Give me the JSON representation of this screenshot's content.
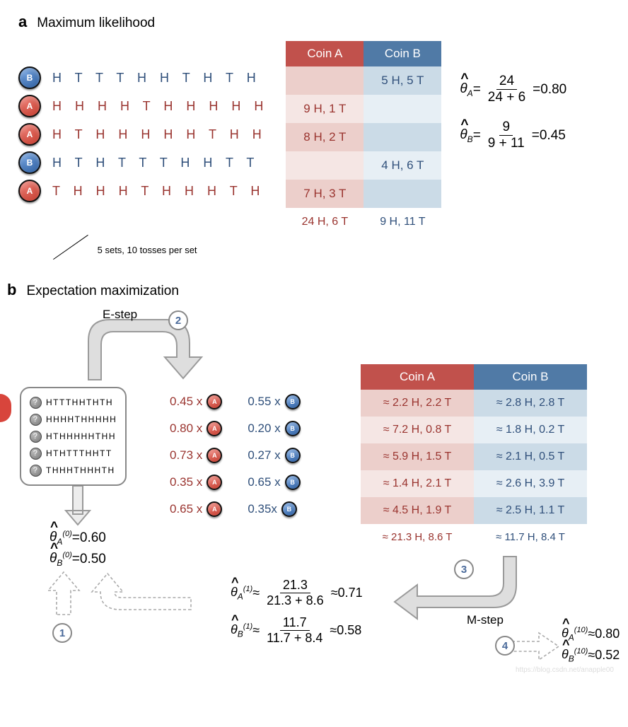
{
  "colors": {
    "coinA_header": "#c1514c",
    "coinB_header": "#507aa6",
    "coinA_cell_dark": "#eccfcb",
    "coinA_cell_light": "#f5e6e4",
    "coinB_cell_dark": "#cbdbe7",
    "coinB_cell_light": "#e7eff5",
    "textA": "#9a342f",
    "textB": "#2f4f7a",
    "coinA_face": "#c0392b",
    "coinB_face": "#2a5a9a",
    "arrow_fill": "#dedede",
    "arrow_stroke": "#9a9a9a"
  },
  "panel_a": {
    "label": "a",
    "title": "Maximum likelihood",
    "tosses": [
      {
        "coin": "B",
        "seq": "H T T T H H T H T H"
      },
      {
        "coin": "A",
        "seq": "H H H H T H H H H H"
      },
      {
        "coin": "A",
        "seq": "H T H H H H H T H H"
      },
      {
        "coin": "B",
        "seq": "H T H T T T H H T T"
      },
      {
        "coin": "A",
        "seq": "T H H H T H H H T H"
      }
    ],
    "table": {
      "headers": [
        "Coin A",
        "Coin B"
      ],
      "rows": [
        {
          "A": "",
          "B": "5 H, 5 T"
        },
        {
          "A": "9 H, 1 T",
          "B": ""
        },
        {
          "A": "8 H, 2 T",
          "B": ""
        },
        {
          "A": "",
          "B": "4 H, 6 T"
        },
        {
          "A": "7 H, 3 T",
          "B": ""
        }
      ],
      "totals": {
        "A": "24 H, 6 T",
        "B": "9 H, 11 T"
      }
    },
    "estimates": {
      "A": {
        "num": "24",
        "den": "24 + 6",
        "val": "0.80"
      },
      "B": {
        "num": "9",
        "den": "9 + 11",
        "val": "0.45"
      }
    },
    "caption": "5 sets, 10 tosses per set"
  },
  "panel_b": {
    "label": "b",
    "title": "Expectation maximization",
    "step_labels": {
      "estep": "E-step",
      "mstep": "M-step"
    },
    "step_numbers": [
      "1",
      "2",
      "3",
      "4"
    ],
    "toss_box": [
      "H T T T H H T H T H",
      "H H H H T H H H H H",
      "H T H H H H H T H H",
      "H T H T T T H H T T",
      "T H H H T H H H T H"
    ],
    "weights": [
      {
        "a": "0.45 x",
        "b": "0.55 x"
      },
      {
        "a": "0.80 x",
        "b": "0.20 x"
      },
      {
        "a": "0.73 x",
        "b": "0.27 x"
      },
      {
        "a": "0.35 x",
        "b": "0.65 x"
      },
      {
        "a": "0.65 x",
        "b": "0.35x"
      }
    ],
    "table": {
      "headers": [
        "Coin A",
        "Coin B"
      ],
      "rows": [
        {
          "A": "≈ 2.2 H, 2.2 T",
          "B": "≈ 2.8 H, 2.8 T"
        },
        {
          "A": "≈ 7.2 H, 0.8 T",
          "B": "≈ 1.8 H, 0.2 T"
        },
        {
          "A": "≈ 5.9 H, 1.5 T",
          "B": "≈ 2.1 H, 0.5 T"
        },
        {
          "A": "≈ 1.4 H, 2.1 T",
          "B": "≈ 2.6 H, 3.9 T"
        },
        {
          "A": "≈ 4.5 H, 1.9 T",
          "B": "≈ 2.5 H, 1.1 T"
        }
      ],
      "totals": {
        "A": "≈ 21.3 H, 8.6 T",
        "B": "≈ 11.7 H, 8.4 T"
      }
    },
    "initial": {
      "A": "0.60",
      "B": "0.50",
      "sup": "(0)"
    },
    "mstep_eq": {
      "A": {
        "num": "21.3",
        "den": "21.3 + 8.6",
        "val": "0.71",
        "sup": "(1)"
      },
      "B": {
        "num": "11.7",
        "den": "11.7 + 8.4",
        "val": "0.58",
        "sup": "(1)"
      }
    },
    "final": {
      "A": "0.80",
      "B": "0.52",
      "sup": "(10)"
    }
  },
  "watermark": "https://blog.csdn.net/anapple00"
}
